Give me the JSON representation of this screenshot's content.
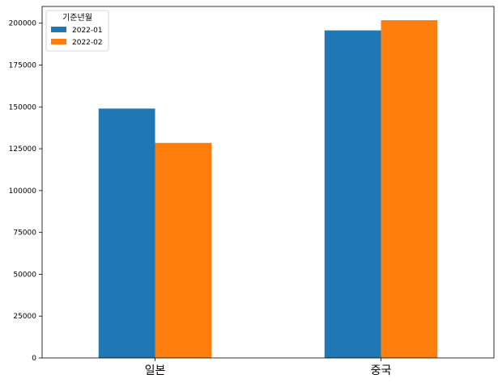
{
  "chart_data": {
    "type": "bar",
    "categories": [
      "일본",
      "중국"
    ],
    "series": [
      {
        "name": "2022-01",
        "values": [
          149000,
          195700
        ],
        "color": "#1f77b4"
      },
      {
        "name": "2022-02",
        "values": [
          128500,
          201800
        ],
        "color": "#ff7f0e"
      }
    ],
    "ylim": [
      0,
      210000
    ],
    "yticks": [
      0,
      25000,
      50000,
      75000,
      100000,
      125000,
      150000,
      175000,
      200000
    ],
    "legend": {
      "title": "기준년월",
      "placement": "top-left"
    },
    "grid": false,
    "title": "",
    "xlabel": "",
    "ylabel": ""
  }
}
